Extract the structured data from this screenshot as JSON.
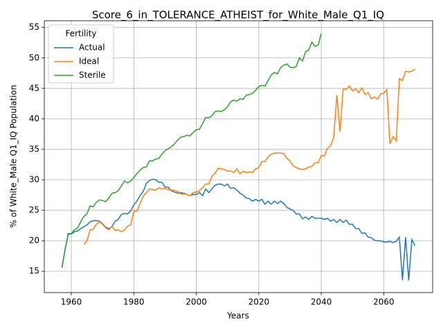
{
  "chart_data": {
    "type": "line",
    "title": "Score_6_in_TOLERANCE_ATHEIST_for_White_Male_Q1_IQ",
    "xlabel": "Years",
    "ylabel": "% of White_Male Q1_IQ Population",
    "legend_title": "Fertility",
    "legend_loc": "upper left",
    "grid": true,
    "xlim": [
      1951.35,
      2075.65
    ],
    "ylim": [
      11.5,
      56.1
    ],
    "xticks": [
      1960,
      1980,
      2000,
      2020,
      2040,
      2060
    ],
    "yticks": [
      15,
      20,
      25,
      30,
      35,
      40,
      45,
      50,
      55
    ],
    "x": [
      1957,
      1958,
      1959,
      1960,
      1961,
      1962,
      1963,
      1964,
      1965,
      1966,
      1967,
      1968,
      1969,
      1970,
      1971,
      1972,
      1973,
      1974,
      1975,
      1976,
      1977,
      1978,
      1979,
      1980,
      1981,
      1982,
      1983,
      1984,
      1985,
      1986,
      1987,
      1988,
      1989,
      1990,
      1991,
      1992,
      1993,
      1994,
      1995,
      1996,
      1997,
      1998,
      1999,
      2000,
      2001,
      2002,
      2003,
      2004,
      2005,
      2006,
      2007,
      2008,
      2009,
      2010,
      2011,
      2012,
      2013,
      2014,
      2015,
      2016,
      2017,
      2018,
      2019,
      2020,
      2021,
      2022,
      2023,
      2024,
      2025,
      2026,
      2027,
      2028,
      2029,
      2030,
      2031,
      2032,
      2033,
      2034,
      2035,
      2036,
      2037,
      2038,
      2039,
      2040,
      2041,
      2042,
      2043,
      2044,
      2045,
      2046,
      2047,
      2048,
      2049,
      2050,
      2051,
      2052,
      2053,
      2054,
      2055,
      2056,
      2057,
      2058,
      2059,
      2060,
      2061,
      2062,
      2063,
      2064,
      2065,
      2066,
      2067,
      2068,
      2069,
      2070
    ],
    "series": [
      {
        "name": "Actual",
        "color": "#1f77b4",
        "values": [
          15.6,
          18.5,
          21.2,
          21.1,
          21.5,
          21.6,
          22.0,
          22.3,
          22.6,
          23.1,
          23.3,
          23.3,
          23.2,
          22.8,
          22.2,
          22.0,
          22.3,
          23.2,
          23.5,
          24.3,
          24.5,
          24.4,
          24.9,
          25.9,
          26.5,
          27.4,
          28.1,
          29.4,
          29.9,
          30.1,
          30.0,
          29.6,
          29.6,
          28.8,
          28.8,
          28.2,
          28.0,
          27.8,
          27.9,
          27.8,
          27.6,
          27.4,
          27.6,
          27.6,
          27.9,
          27.4,
          28.5,
          27.9,
          28.5,
          29.1,
          29.3,
          29.3,
          29.0,
          29.3,
          28.6,
          28.7,
          28.3,
          27.8,
          27.5,
          27.0,
          26.9,
          26.5,
          26.8,
          26.5,
          26.8,
          26.0,
          26.5,
          26.0,
          26.5,
          26.1,
          26.5,
          26.1,
          25.5,
          25.2,
          25.0,
          24.4,
          24.4,
          23.6,
          23.9,
          23.5,
          24.0,
          23.7,
          23.7,
          23.7,
          23.5,
          23.7,
          23.2,
          23.5,
          23.0,
          23.5,
          23.0,
          23.4,
          22.7,
          22.7,
          22.0,
          22.0,
          21.2,
          21.3,
          20.6,
          20.5,
          20.1,
          20.0,
          20.0,
          19.8,
          19.8,
          19.9,
          19.7,
          19.9,
          20.6,
          13.5,
          20.6,
          13.5,
          20.2,
          19.2
        ]
      },
      {
        "name": "Ideal",
        "color": "#ff7f0e",
        "values": [
          null,
          null,
          null,
          null,
          null,
          null,
          null,
          19.4,
          20.0,
          21.8,
          21.9,
          22.7,
          23.1,
          22.7,
          22.1,
          21.8,
          22.4,
          21.7,
          21.8,
          21.5,
          21.8,
          22.4,
          22.6,
          24.8,
          24.9,
          26.1,
          27.3,
          27.9,
          28.5,
          28.4,
          28.3,
          28.7,
          28.5,
          28.6,
          28.4,
          28.3,
          28.3,
          28.1,
          27.7,
          27.7,
          27.6,
          27.4,
          27.9,
          28.0,
          28.2,
          28.7,
          29.3,
          29.3,
          30.6,
          31.1,
          31.9,
          31.8,
          31.7,
          31.4,
          31.5,
          31.2,
          31.8,
          31.0,
          31.4,
          31.2,
          31.3,
          31.2,
          31.8,
          32.0,
          33.0,
          33.0,
          33.8,
          34.2,
          34.4,
          34.4,
          34.4,
          34.3,
          33.5,
          33.1,
          32.3,
          32.0,
          31.8,
          31.7,
          31.8,
          32.1,
          32.2,
          32.8,
          32.8,
          34.0,
          33.9,
          35.2,
          35.6,
          37.0,
          43.9,
          37.9,
          44.9,
          44.8,
          45.4,
          44.6,
          44.9,
          44.3,
          45.1,
          44.0,
          44.3,
          43.3,
          43.6,
          43.2,
          44.1,
          44.2,
          44.8,
          35.9,
          37.1,
          36.4,
          46.6,
          46.3,
          47.8,
          47.7,
          47.8,
          48.2
        ]
      },
      {
        "name": "Sterile",
        "color": "#2ca02c",
        "values": [
          15.6,
          18.6,
          21.0,
          21.2,
          21.8,
          22.1,
          23.1,
          24.0,
          24.4,
          25.7,
          25.6,
          26.3,
          26.7,
          26.6,
          26.4,
          27.0,
          27.8,
          27.9,
          28.2,
          29.0,
          29.8,
          29.5,
          29.8,
          30.4,
          31.0,
          31.6,
          32.0,
          32.1,
          33.1,
          33.1,
          33.4,
          33.5,
          34.2,
          34.8,
          35.1,
          35.4,
          35.9,
          36.5,
          37.0,
          37.1,
          37.3,
          37.2,
          37.8,
          38.2,
          38.3,
          39.2,
          40.2,
          40.2,
          40.5,
          41.2,
          41.3,
          41.2,
          41.5,
          42.0,
          42.8,
          43.1,
          42.9,
          43.3,
          43.2,
          43.9,
          44.0,
          44.2,
          44.7,
          45.3,
          45.5,
          45.4,
          46.3,
          47.2,
          47.6,
          47.4,
          48.4,
          48.8,
          49.0,
          48.5,
          48.4,
          48.6,
          50.0,
          49.5,
          51.0,
          51.3,
          52.6,
          51.9,
          52.1,
          54.0,
          null,
          null,
          null,
          null,
          null,
          null,
          null,
          null,
          null,
          null,
          null,
          null,
          null,
          null,
          null,
          null,
          null,
          null,
          null,
          null,
          null,
          null,
          null,
          null,
          null,
          null,
          null,
          null,
          null,
          null
        ]
      }
    ]
  }
}
